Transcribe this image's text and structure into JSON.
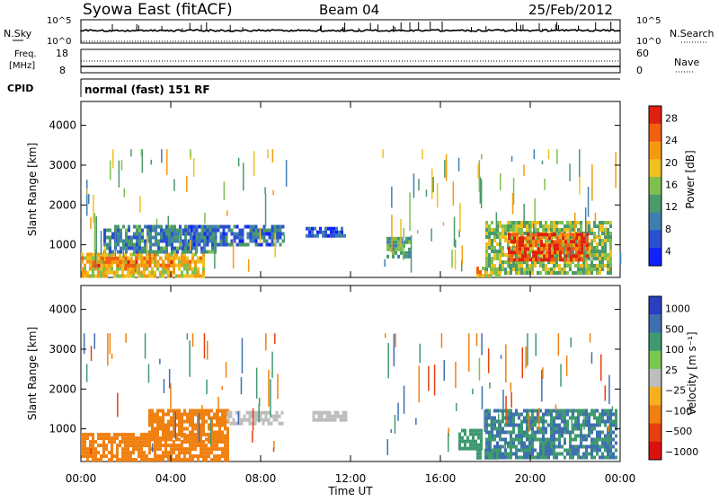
{
  "header": {
    "station": "Syowa East (fitACF)",
    "beam": "Beam 04",
    "date": "25/Feb/2012"
  },
  "nsky_panel": {
    "left_label": "N.Sky",
    "right_label": "N.Search",
    "left_ticks": [
      "10^5",
      "10^0"
    ],
    "right_ticks": [
      "10^5",
      "10^0"
    ]
  },
  "freq_panel": {
    "left_label_1": "Freq.",
    "left_label_2": "[MHz]",
    "right_label": "Nave",
    "left_ticks": [
      "18",
      "8"
    ],
    "right_ticks": [
      "60",
      "0"
    ]
  },
  "cpid": {
    "label": "CPID",
    "value": "normal (fast) 151 RF"
  },
  "colors": {
    "power_scale": [
      "#1020ff",
      "#2a4fd0",
      "#3f7fb0",
      "#4a9a6a",
      "#7fbf4f",
      "#f0c020",
      "#f59a10",
      "#f06010",
      "#e02010"
    ],
    "velocity_scale": [
      "#2a3fc0",
      "#3f6fb0",
      "#3f9a70",
      "#7ac850",
      "#bdbdbd",
      "#f5b020",
      "#f08010",
      "#e84010",
      "#dd1010"
    ]
  },
  "chart_data": [
    {
      "type": "heatmap",
      "title": "Power",
      "xlabel": "Time UT",
      "ylabel": "Slant Range [km]",
      "x_ticks": [
        "00:00",
        "04:00",
        "08:00",
        "12:00",
        "16:00",
        "20:00",
        "00:00"
      ],
      "y_ticks": [
        1000,
        2000,
        3000,
        4000
      ],
      "xlim": [
        0,
        24
      ],
      "ylim": [
        180,
        4600
      ],
      "colorbar_label": "Power [dB]",
      "colorbar_ticks": [
        4,
        8,
        12,
        16,
        20,
        24,
        28
      ],
      "regions": [
        {
          "t0": 0.0,
          "t1": 5.5,
          "r0": 250,
          "r1": 800,
          "value": 20
        },
        {
          "t0": 0.5,
          "t1": 4.0,
          "r0": 450,
          "r1": 700,
          "value": 24
        },
        {
          "t0": 1.0,
          "t1": 6.0,
          "r0": 800,
          "r1": 1500,
          "value": 10
        },
        {
          "t0": 4.5,
          "t1": 9.0,
          "r0": 1000,
          "r1": 1500,
          "value": 8
        },
        {
          "t0": 10.0,
          "t1": 11.8,
          "r0": 1250,
          "r1": 1450,
          "value": 6
        },
        {
          "t0": 13.6,
          "t1": 14.6,
          "r0": 700,
          "r1": 1200,
          "value": 12
        },
        {
          "t0": 17.6,
          "t1": 18.6,
          "r0": 250,
          "r1": 450,
          "value": 20
        },
        {
          "t0": 18.0,
          "t1": 23.6,
          "r0": 300,
          "r1": 1600,
          "value": 16
        },
        {
          "t0": 19.0,
          "t1": 22.5,
          "r0": 600,
          "r1": 1300,
          "value": 28
        }
      ]
    },
    {
      "type": "heatmap",
      "title": "Velocity",
      "xlabel": "Time UT",
      "ylabel": "Slant Range [km]",
      "x_ticks": [
        "00:00",
        "04:00",
        "08:00",
        "12:00",
        "16:00",
        "20:00",
        "00:00"
      ],
      "y_ticks": [
        1000,
        2000,
        3000,
        4000
      ],
      "xlim": [
        0,
        24
      ],
      "ylim": [
        180,
        4600
      ],
      "colorbar_label": "Velocity [m s⁻¹]",
      "colorbar_ticks": [
        "1000",
        "500",
        "100",
        "25",
        "−25",
        "−100",
        "−500",
        "−1000"
      ],
      "regions": [
        {
          "t0": 0.0,
          "t1": 6.5,
          "r0": 250,
          "r1": 900,
          "value": -100
        },
        {
          "t0": 3.0,
          "t1": 6.5,
          "r0": 700,
          "r1": 1500,
          "value": -100
        },
        {
          "t0": 6.5,
          "t1": 9.0,
          "r0": 1100,
          "r1": 1450,
          "value": 0
        },
        {
          "t0": 10.3,
          "t1": 11.8,
          "r0": 1250,
          "r1": 1450,
          "value": 0
        },
        {
          "t0": 16.8,
          "t1": 17.8,
          "r0": 500,
          "r1": 1000,
          "value": 100
        },
        {
          "t0": 17.6,
          "t1": 18.6,
          "r0": 300,
          "r1": 500,
          "value": 200
        },
        {
          "t0": 18.0,
          "t1": 23.8,
          "r0": 300,
          "r1": 1500,
          "value": 300
        }
      ]
    }
  ]
}
